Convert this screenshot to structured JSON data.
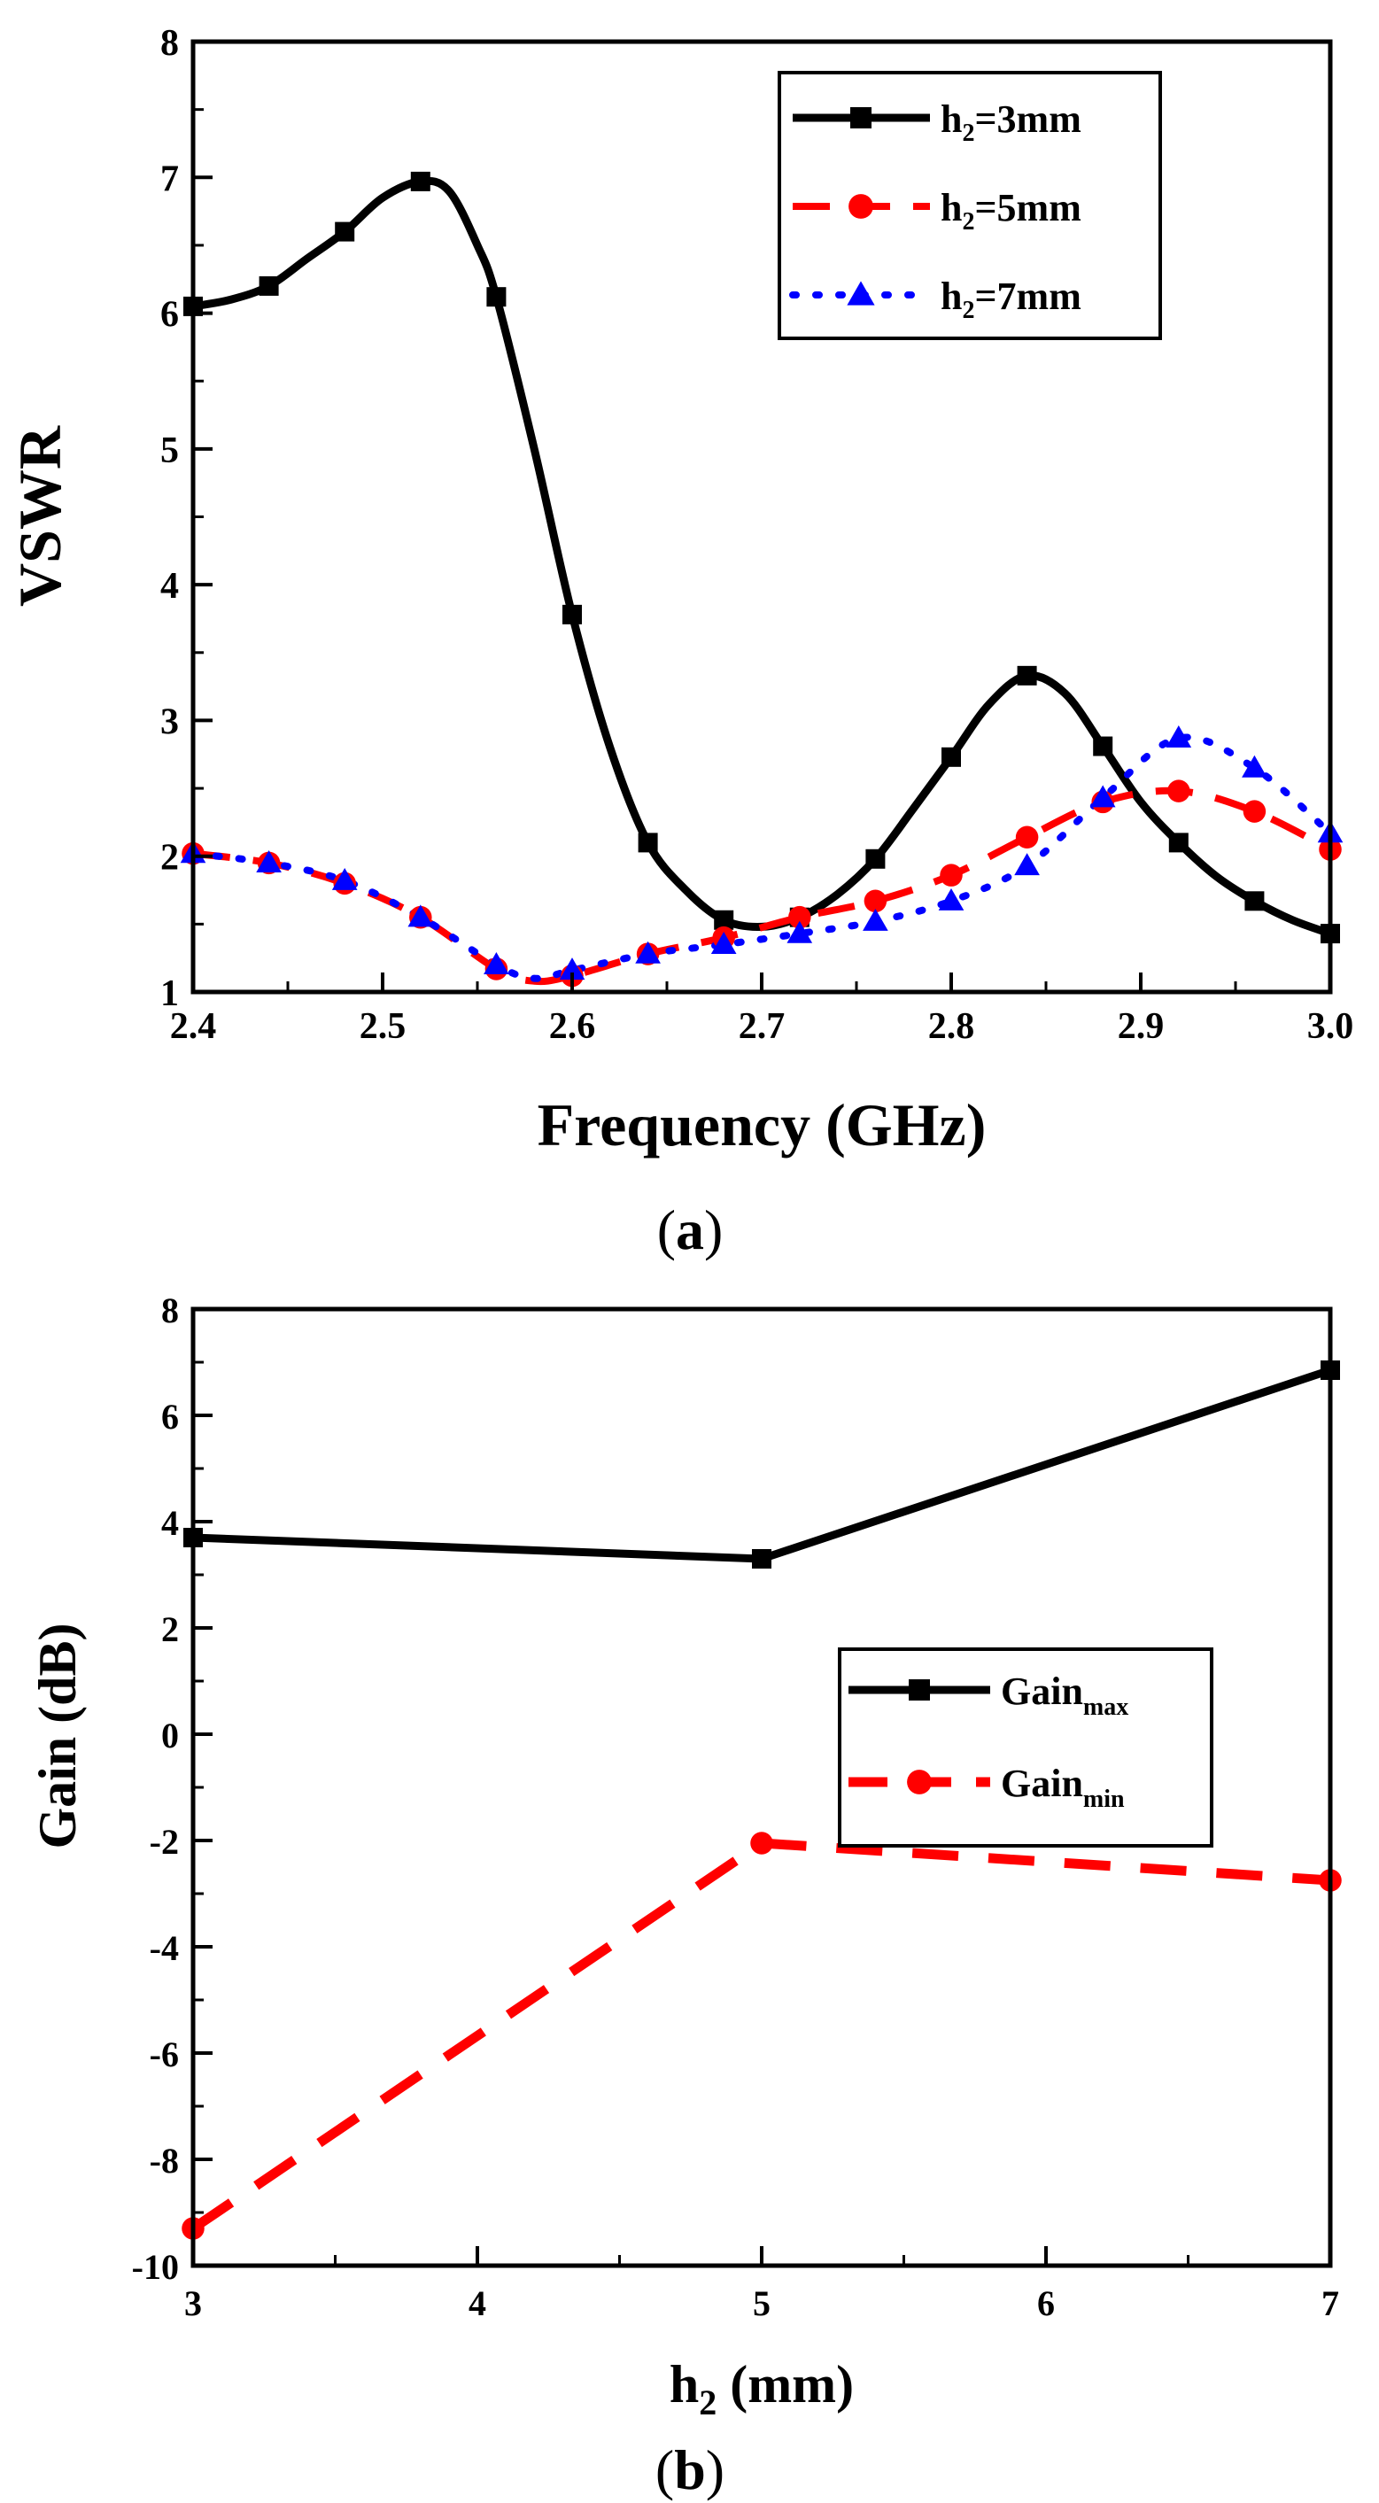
{
  "chart_data": [
    {
      "id": "a",
      "type": "line",
      "caption_open": "(",
      "caption_letter": "a",
      "caption_close": ")",
      "xlabel": "Frequency (GHz)",
      "ylabel": "VSWR",
      "xlim": [
        2.4,
        3.0
      ],
      "ylim": [
        1,
        8
      ],
      "xticks": [
        "2.4",
        "2.5",
        "2.6",
        "2.7",
        "2.8",
        "2.9",
        "3.0"
      ],
      "yticks": [
        "1",
        "2",
        "3",
        "4",
        "5",
        "6",
        "7",
        "8"
      ],
      "legend_position": "top-right",
      "series": [
        {
          "name": "h2=3mm",
          "label_main": "h",
          "label_sub": "2",
          "label_rest": "=3mm",
          "color": "#000000",
          "style": "solid",
          "marker": "square",
          "x": [
            2.4,
            2.44,
            2.48,
            2.52,
            2.56,
            2.6,
            2.64,
            2.68,
            2.72,
            2.76,
            2.8,
            2.84,
            2.88,
            2.92,
            2.96,
            3.0
          ],
          "y": [
            6.05,
            6.2,
            6.6,
            6.97,
            6.12,
            3.78,
            2.1,
            1.53,
            1.55,
            1.98,
            2.73,
            3.33,
            2.81,
            2.1,
            1.67,
            1.43
          ],
          "curve_x": [
            2.4,
            2.42,
            2.44,
            2.46,
            2.48,
            2.5,
            2.52,
            2.535,
            2.55,
            2.56,
            2.58,
            2.6,
            2.62,
            2.64,
            2.66,
            2.68,
            2.7,
            2.72,
            2.74,
            2.76,
            2.78,
            2.8,
            2.82,
            2.84,
            2.86,
            2.88,
            2.9,
            2.92,
            2.94,
            2.96,
            2.98,
            3.0
          ],
          "curve_y": [
            6.05,
            6.1,
            6.2,
            6.4,
            6.6,
            6.85,
            6.97,
            6.9,
            6.5,
            6.12,
            5.0,
            3.78,
            2.8,
            2.1,
            1.75,
            1.53,
            1.48,
            1.55,
            1.72,
            1.98,
            2.35,
            2.73,
            3.12,
            3.33,
            3.2,
            2.81,
            2.4,
            2.1,
            1.85,
            1.67,
            1.53,
            1.43
          ]
        },
        {
          "name": "h2=5mm",
          "label_main": "h",
          "label_sub": "2",
          "label_rest": "=5mm",
          "color": "#ff0000",
          "style": "dashed",
          "marker": "circle",
          "x": [
            2.4,
            2.44,
            2.48,
            2.52,
            2.56,
            2.6,
            2.64,
            2.68,
            2.72,
            2.76,
            2.8,
            2.84,
            2.88,
            2.92,
            2.96,
            3.0
          ],
          "y": [
            2.02,
            1.95,
            1.8,
            1.55,
            1.17,
            1.12,
            1.28,
            1.4,
            1.55,
            1.67,
            1.86,
            2.14,
            2.4,
            2.48,
            2.33,
            2.05
          ],
          "curve_x": [
            2.4,
            2.44,
            2.48,
            2.52,
            2.56,
            2.58,
            2.6,
            2.64,
            2.68,
            2.72,
            2.76,
            2.8,
            2.84,
            2.88,
            2.92,
            2.96,
            3.0
          ],
          "curve_y": [
            2.02,
            1.95,
            1.8,
            1.55,
            1.17,
            1.08,
            1.12,
            1.28,
            1.4,
            1.55,
            1.67,
            1.86,
            2.14,
            2.4,
            2.48,
            2.33,
            2.05
          ]
        },
        {
          "name": "h2=7mm",
          "label_main": "h",
          "label_sub": "2",
          "label_rest": "=7mm",
          "color": "#0000ff",
          "style": "dotted",
          "marker": "triangle",
          "x": [
            2.4,
            2.44,
            2.48,
            2.52,
            2.56,
            2.6,
            2.64,
            2.68,
            2.72,
            2.76,
            2.8,
            2.84,
            2.88,
            2.92,
            2.96,
            3.0
          ],
          "y": [
            2.02,
            1.95,
            1.82,
            1.55,
            1.2,
            1.16,
            1.28,
            1.35,
            1.43,
            1.52,
            1.67,
            1.93,
            2.43,
            2.87,
            2.65,
            2.17
          ],
          "curve_x": [
            2.4,
            2.44,
            2.48,
            2.52,
            2.56,
            2.58,
            2.6,
            2.64,
            2.68,
            2.72,
            2.76,
            2.8,
            2.84,
            2.88,
            2.92,
            2.96,
            3.0
          ],
          "curve_y": [
            2.02,
            1.95,
            1.82,
            1.55,
            1.2,
            1.1,
            1.16,
            1.28,
            1.35,
            1.43,
            1.52,
            1.67,
            1.93,
            2.43,
            2.87,
            2.65,
            2.17
          ]
        }
      ]
    },
    {
      "id": "b",
      "type": "line",
      "caption_open": "(",
      "caption_letter": "b",
      "caption_close": ")",
      "xlabel_main": "h",
      "xlabel_sub": "2",
      "xlabel_rest": " (mm)",
      "ylabel": "Gain (dB)",
      "xlim": [
        3,
        7
      ],
      "ylim": [
        -10,
        8
      ],
      "xticks": [
        "3",
        "4",
        "5",
        "6",
        "7"
      ],
      "yticks": [
        "-10",
        "-8",
        "-6",
        "-4",
        "-2",
        "0",
        "2",
        "4",
        "6",
        "8"
      ],
      "legend_position": "center-right",
      "series": [
        {
          "name": "Gainmax",
          "label_main": "Gain",
          "label_sub": "max",
          "color": "#000000",
          "style": "solid",
          "marker": "square",
          "x": [
            3,
            5,
            7
          ],
          "y": [
            3.7,
            3.3,
            6.85
          ]
        },
        {
          "name": "Gainmin",
          "label_main": "Gain",
          "label_sub": "min",
          "color": "#ff0000",
          "style": "dashed",
          "marker": "circle",
          "x": [
            3,
            5,
            7
          ],
          "y": [
            -9.3,
            -2.05,
            -2.75
          ]
        }
      ]
    }
  ]
}
